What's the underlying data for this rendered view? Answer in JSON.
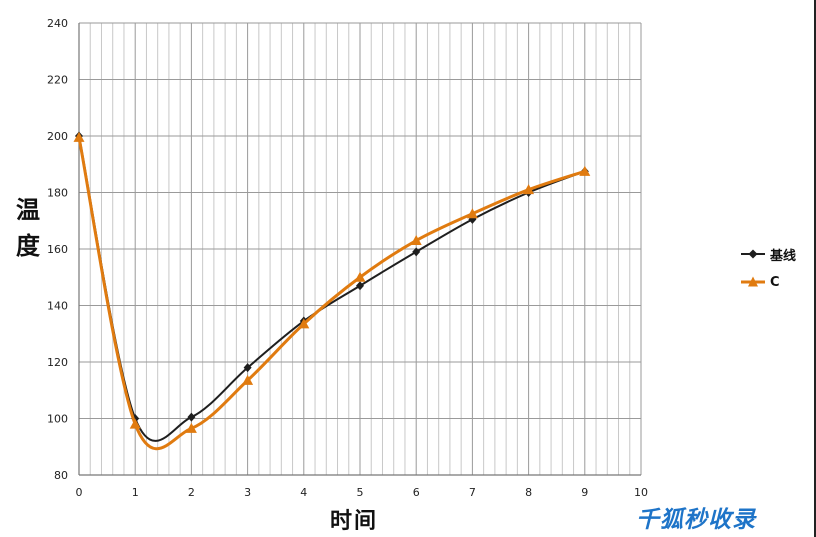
{
  "chart_data": {
    "type": "line",
    "ylabel": "温度",
    "xlabel": "时间",
    "xlim": [
      0,
      10
    ],
    "ylim": [
      80,
      240
    ],
    "x_ticks": [
      0,
      1,
      2,
      3,
      4,
      5,
      6,
      7,
      8,
      9,
      10
    ],
    "y_ticks": [
      80,
      100,
      120,
      140,
      160,
      180,
      200,
      220,
      240
    ],
    "grid": true,
    "legend_position": "right",
    "series": [
      {
        "name": "基线",
        "color": "#1f1f1f",
        "marker": "diamond",
        "x": [
          0,
          1,
          2,
          3,
          4,
          5,
          6,
          7,
          8,
          9
        ],
        "y": [
          200,
          100,
          100.5,
          118,
          134.5,
          147,
          159,
          170.5,
          180,
          187.5
        ]
      },
      {
        "name": "C",
        "color": "#e07b10",
        "marker": "triangle",
        "x": [
          0,
          1,
          2,
          3,
          4,
          5,
          6,
          7,
          8,
          9
        ],
        "y": [
          199.5,
          98,
          96.5,
          113.5,
          133.5,
          150,
          163,
          172.5,
          181,
          187.5
        ]
      }
    ]
  },
  "watermark": "千狐秒收录"
}
